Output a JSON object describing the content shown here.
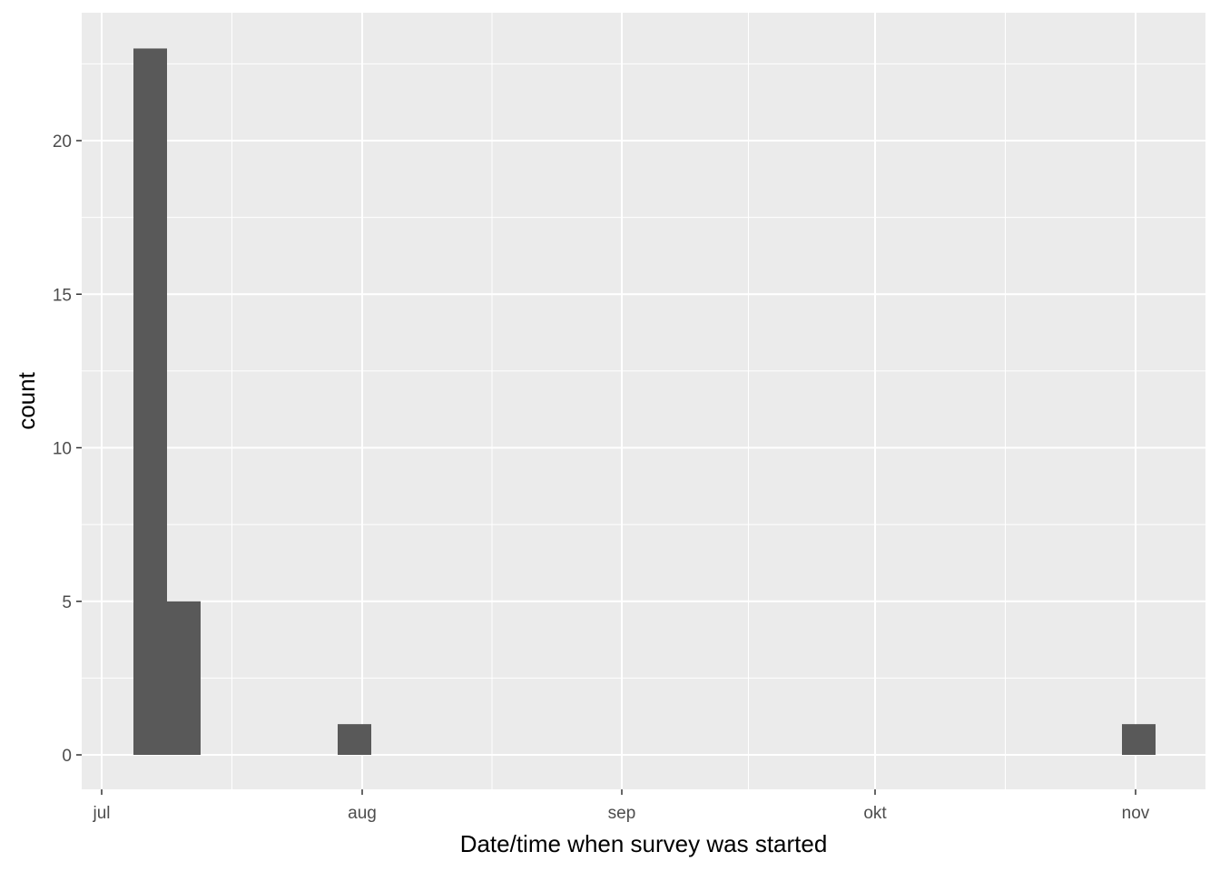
{
  "chart_data": {
    "type": "bar",
    "title": "",
    "xlabel": "Date/time when survey was started",
    "ylabel": "count",
    "x_ticks": [
      "jul",
      "aug",
      "sep",
      "okt",
      "nov"
    ],
    "y_ticks": [
      "0",
      "5",
      "10",
      "15",
      "20"
    ],
    "ylim": [
      -1.15,
      24.15
    ],
    "grid": true,
    "background": "#ebebeb",
    "bar_color": "#595959",
    "gridline_color": "#ffffff",
    "bins": [
      {
        "label": "jul",
        "value": 23
      },
      {
        "label": "jul",
        "value": 5
      },
      {
        "label": "aug",
        "value": 1
      },
      {
        "label": "nov",
        "value": 1
      }
    ]
  }
}
